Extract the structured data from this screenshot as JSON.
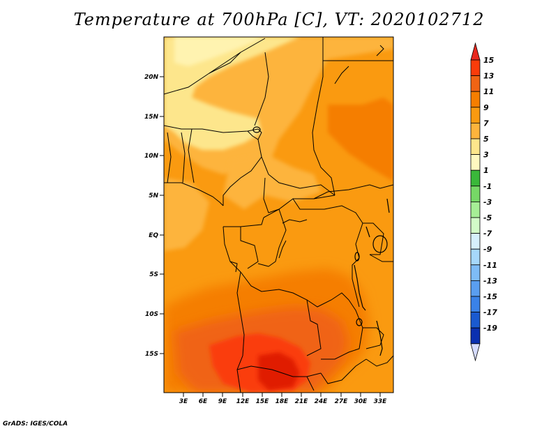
{
  "title": "Temperature at 700hPa [C], VT: 2020102712",
  "credit": "GrADS: IGES/COLA",
  "map": {
    "lon_range": [
      0,
      35
    ],
    "lat_range": [
      -20,
      25
    ],
    "lat_ticks": [
      "20N",
      "15N",
      "10N",
      "5N",
      "EQ",
      "5S",
      "10S",
      "15S"
    ],
    "lon_ticks": [
      "3E",
      "6E",
      "9E",
      "12E",
      "15E",
      "18E",
      "21E",
      "24E",
      "27E",
      "30E",
      "33E"
    ]
  },
  "colorbar": {
    "labels": [
      "15",
      "13",
      "11",
      "9",
      "7",
      "5",
      "3",
      "1",
      "-1",
      "-3",
      "-5",
      "-7",
      "-9",
      "-11",
      "-13",
      "-15",
      "-17",
      "-19"
    ],
    "colors": [
      "#fa3c0a",
      "#f06414",
      "#f57e00",
      "#fa9a10",
      "#fdb43c",
      "#fde68c",
      "#fff8c0",
      "#3ab83a",
      "#76d866",
      "#a6ee96",
      "#d2fbc8",
      "#d6f0fd",
      "#a6d8fb",
      "#7ebcf6",
      "#5a9ef0",
      "#3a82e8",
      "#1a5ad0",
      "#0a30b0",
      "#1c1870",
      "#d6dcff"
    ]
  }
}
